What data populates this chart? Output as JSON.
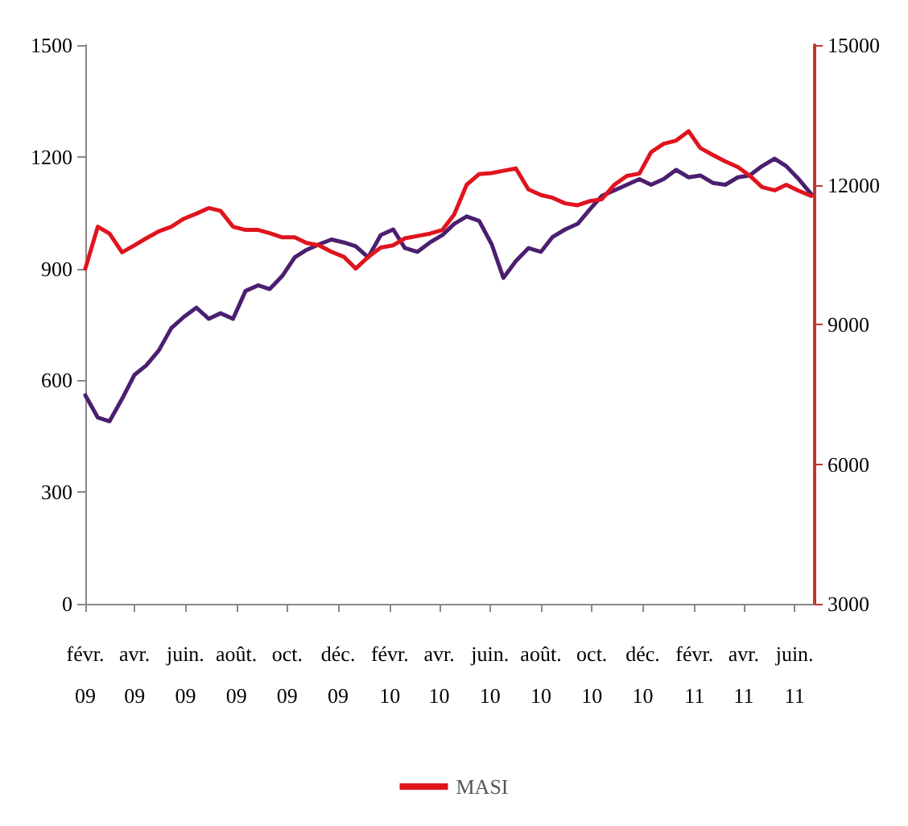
{
  "chart_data": {
    "type": "line",
    "x": [
      "2009-02-01",
      "2009-02-16",
      "2009-03-02",
      "2009-03-17",
      "2009-04-01",
      "2009-04-15",
      "2009-04-30",
      "2009-05-15",
      "2009-05-30",
      "2009-06-14",
      "2009-06-29",
      "2009-07-13",
      "2009-07-28",
      "2009-08-12",
      "2009-08-27",
      "2009-09-10",
      "2009-09-25",
      "2009-10-10",
      "2009-10-24",
      "2009-11-08",
      "2009-11-23",
      "2009-12-08",
      "2009-12-22",
      "2010-01-06",
      "2010-01-21",
      "2010-02-05",
      "2010-02-19",
      "2010-03-06",
      "2010-03-21",
      "2010-04-05",
      "2010-04-19",
      "2010-05-04",
      "2010-05-19",
      "2010-06-03",
      "2010-06-17",
      "2010-07-02",
      "2010-07-17",
      "2010-08-01",
      "2010-08-15",
      "2010-08-30",
      "2010-09-14",
      "2010-09-29",
      "2010-10-13",
      "2010-10-28",
      "2010-11-12",
      "2010-11-27",
      "2010-12-11",
      "2010-12-26",
      "2011-01-10",
      "2011-01-25",
      "2011-02-08",
      "2011-02-23",
      "2011-03-10",
      "2011-03-25",
      "2011-04-08",
      "2011-04-23",
      "2011-05-08",
      "2011-05-22",
      "2011-06-06",
      "2011-06-21"
    ],
    "series": [
      {
        "color": "#4b1f6f",
        "values": [
          560,
          500,
          490,
          550,
          615,
          640,
          680,
          740,
          770,
          795,
          765,
          780,
          765,
          840,
          855,
          845,
          880,
          930,
          950,
          965,
          978,
          970,
          960,
          930,
          990,
          1005,
          955,
          945,
          970,
          990,
          1020,
          1040,
          1028,
          965,
          875,
          920,
          955,
          945,
          985,
          1005,
          1020,
          1060,
          1095,
          1110,
          1125,
          1140,
          1125,
          1140,
          1165,
          1145,
          1150,
          1130,
          1125,
          1145,
          1150,
          1175,
          1195,
          1175,
          1140,
          1100
        ]
      },
      {
        "name": "MASI",
        "color": "#e0141e",
        "axis": "y2",
        "values": [
          10200,
          11100,
          10950,
          10550,
          10700,
          10850,
          11000,
          11100,
          11270,
          11380,
          11500,
          11440,
          11100,
          11030,
          11030,
          10960,
          10870,
          10870,
          10750,
          10700,
          10560,
          10450,
          10200,
          10450,
          10650,
          10700,
          10850,
          10900,
          10950,
          11030,
          11360,
          12000,
          12230,
          12250,
          12300,
          12350,
          11900,
          11780,
          11720,
          11600,
          11560,
          11650,
          11690,
          12000,
          12190,
          12240,
          12700,
          12880,
          12950,
          13150,
          12790,
          12640,
          12500,
          12380,
          12200,
          11950,
          11880,
          12000,
          11870,
          11760
        ]
      }
    ],
    "xlim": [
      "2009-02-01",
      "2011-06-25"
    ],
    "xticks": [
      {
        "value": "2009-02-01",
        "label": "févr.\n09"
      },
      {
        "value": "2009-04-01",
        "label": "avr.\n09"
      },
      {
        "value": "2009-06-01",
        "label": "juin.\n09"
      },
      {
        "value": "2009-08-01",
        "label": "août.\n09"
      },
      {
        "value": "2009-10-01",
        "label": "oct.\n09"
      },
      {
        "value": "2009-12-01",
        "label": "déc.\n09"
      },
      {
        "value": "2010-02-01",
        "label": "févr.\n10"
      },
      {
        "value": "2010-04-01",
        "label": "avr.\n10"
      },
      {
        "value": "2010-06-01",
        "label": "juin.\n10"
      },
      {
        "value": "2010-08-01",
        "label": "août.\n10"
      },
      {
        "value": "2010-10-01",
        "label": "oct.\n10"
      },
      {
        "value": "2010-12-01",
        "label": "déc.\n10"
      },
      {
        "value": "2011-02-01",
        "label": "févr.\n11"
      },
      {
        "value": "2011-04-01",
        "label": "avr.\n11"
      },
      {
        "value": "2011-06-01",
        "label": "juin.\n11"
      }
    ],
    "ylim": [
      0,
      1500
    ],
    "yticks": [
      0,
      300,
      600,
      900,
      1200,
      1500
    ],
    "y2lim": [
      3000,
      15000
    ],
    "y2ticks": [
      3000,
      6000,
      9000,
      12000,
      15000
    ],
    "grid": false,
    "legend": "bottom",
    "marker": "none",
    "line_style": "solid"
  }
}
